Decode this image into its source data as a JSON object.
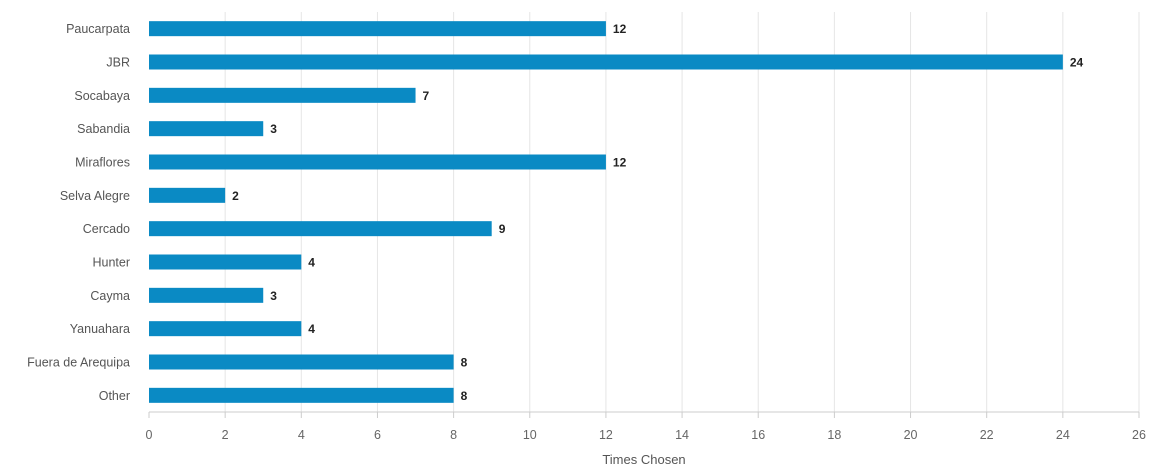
{
  "chart_data": {
    "type": "bar",
    "orientation": "horizontal",
    "categories": [
      "Paucarpata",
      "JBR",
      "Socabaya",
      "Sabandia",
      "Miraflores",
      "Selva Alegre",
      "Cercado",
      "Hunter",
      "Cayma",
      "Yanuahara",
      "Fuera de Arequipa",
      "Other"
    ],
    "values": [
      12,
      24,
      7,
      3,
      12,
      2,
      9,
      4,
      3,
      4,
      8,
      8
    ],
    "xlabel": "Times Chosen",
    "ylabel": "",
    "xlim": [
      0,
      26
    ],
    "xticks": [
      0,
      2,
      4,
      6,
      8,
      10,
      12,
      14,
      16,
      18,
      20,
      22,
      24,
      26
    ],
    "grid": true,
    "data_labels": true,
    "bar_color": "#0a8ac4"
  }
}
